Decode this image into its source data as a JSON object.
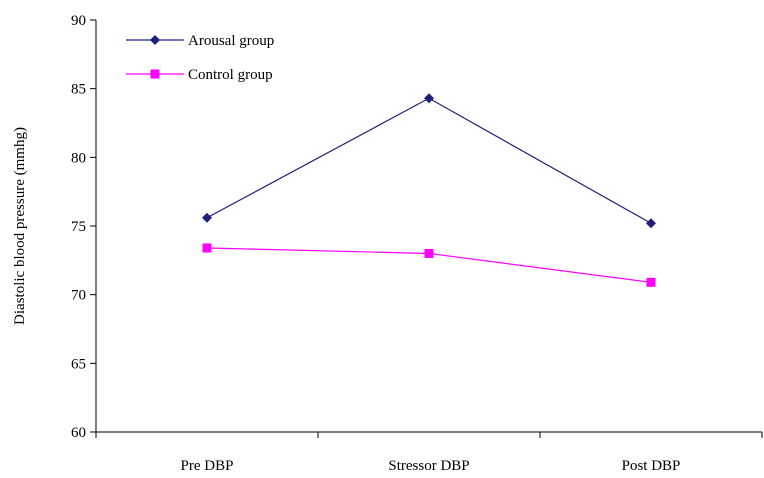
{
  "chart_data": {
    "type": "line",
    "title": "",
    "xlabel": "",
    "ylabel": "Diastolic blood pressure (mmhg)",
    "categories": [
      "Pre DBP",
      "Stressor DBP",
      "Post DBP"
    ],
    "ylim": [
      60,
      90
    ],
    "yticks": [
      60,
      65,
      70,
      75,
      80,
      85,
      90
    ],
    "grid": false,
    "legend_position": "top-left",
    "series": [
      {
        "name": "Arousal group",
        "values": [
          75.6,
          84.3,
          75.2
        ],
        "color": "#1f1f7a",
        "marker": "diamond"
      },
      {
        "name": "Control group",
        "values": [
          73.4,
          73.0,
          70.9
        ],
        "color": "#ff00ff",
        "marker": "square"
      }
    ]
  }
}
